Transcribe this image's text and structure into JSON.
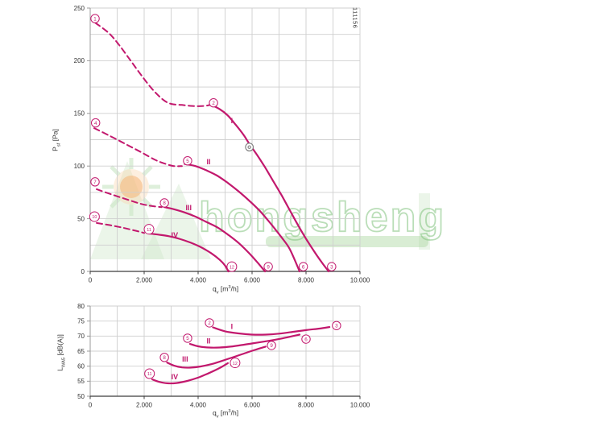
{
  "page": {
    "part_number": "111156",
    "background": "#ffffff"
  },
  "watermark": {
    "text": "hongsheng",
    "text_color": "rgba(130,195,125,0.55)",
    "bar_color": "rgba(170,215,160,0.45)",
    "strip_color": "rgba(205,230,200,0.40)",
    "sun_color": "rgba(246,181,118,0.55)",
    "sun_glow_color": "rgba(249,208,162,0.35)",
    "ray_color": "rgba(205,230,200,0.65)"
  },
  "colors": {
    "curve": "#c2186d",
    "grid": "#cfcfcf",
    "axis_left": "#9b9b9b",
    "axis_bottom": "#3c3c3c",
    "tick_text": "#333333",
    "marker_fill": "#ffffff",
    "operating_marker": "#7a7a7a"
  },
  "chart_data": [
    {
      "name": "static_pressure_vs_airflow",
      "type": "line",
      "xlabel": {
        "base": "q",
        "sub": "v",
        "unit_pre": " [m",
        "sup": "3",
        "unit_post": "/h]"
      },
      "ylabel": {
        "base": "P",
        "sub": "sf",
        "unit_pre": " [Pa]",
        "sup": "",
        "unit_post": ""
      },
      "xlim": [
        0,
        10000
      ],
      "ylim": [
        0,
        250
      ],
      "x_grid_step": 1000,
      "y_grid_step": 25,
      "x_major_ticks": [
        0,
        2000,
        4000,
        6000,
        8000,
        10000
      ],
      "x_tick_labels": [
        "0",
        "2.000",
        "4.000",
        "6.000",
        "8.000",
        "10.000"
      ],
      "y_major_ticks": [
        0,
        50,
        100,
        150,
        200,
        250
      ],
      "y_tick_labels": [
        "0",
        "50",
        "100",
        "150",
        "200",
        "250"
      ],
      "series": [
        {
          "name": "I-dashed",
          "style": "dashed",
          "points": [
            [
              190,
              236
            ],
            [
              700,
              226
            ],
            [
              1100,
              214
            ],
            [
              1500,
              200
            ],
            [
              1900,
              186
            ],
            [
              2300,
              173
            ],
            [
              2700,
              163
            ],
            [
              3000,
              159
            ],
            [
              3400,
              158
            ],
            [
              3800,
              157
            ],
            [
              4200,
              157
            ],
            [
              4450,
              158
            ]
          ]
        },
        {
          "name": "I-solid",
          "style": "solid",
          "points": [
            [
              4500,
              158
            ],
            [
              4800,
              154
            ],
            [
              5100,
              148
            ],
            [
              5400,
              139
            ],
            [
              5700,
              129
            ],
            [
              5900,
              121
            ],
            [
              6200,
              110
            ],
            [
              6500,
              98
            ],
            [
              6800,
              85
            ],
            [
              7100,
              72
            ],
            [
              7400,
              58
            ],
            [
              7700,
              44
            ],
            [
              8000,
              31
            ],
            [
              8300,
              19
            ],
            [
              8600,
              8
            ],
            [
              8840,
              0
            ]
          ]
        },
        {
          "name": "II-dashed",
          "style": "dashed",
          "points": [
            [
              150,
              136
            ],
            [
              700,
              129
            ],
            [
              1300,
              121
            ],
            [
              1900,
              113
            ],
            [
              2400,
              106
            ],
            [
              2800,
              102
            ],
            [
              3100,
              100
            ],
            [
              3400,
              100
            ]
          ]
        },
        {
          "name": "II-solid",
          "style": "solid",
          "points": [
            [
              3500,
              102
            ],
            [
              3900,
              100
            ],
            [
              4300,
              96
            ],
            [
              4700,
              91
            ],
            [
              5100,
              84
            ],
            [
              5500,
              76
            ],
            [
              5900,
              67
            ],
            [
              6300,
              57
            ],
            [
              6700,
              45
            ],
            [
              7100,
              32
            ],
            [
              7400,
              21
            ],
            [
              7760,
              0
            ]
          ]
        },
        {
          "name": "III-dashed",
          "style": "dashed",
          "points": [
            [
              240,
              78
            ],
            [
              800,
              73
            ],
            [
              1400,
              68
            ],
            [
              1900,
              64
            ],
            [
              2300,
              62
            ],
            [
              2650,
              61
            ]
          ]
        },
        {
          "name": "III-solid",
          "style": "solid",
          "points": [
            [
              2750,
              61
            ],
            [
              3100,
              59
            ],
            [
              3500,
              56
            ],
            [
              3900,
              52
            ],
            [
              4300,
              47
            ],
            [
              4700,
              42
            ],
            [
              5100,
              35
            ],
            [
              5500,
              27
            ],
            [
              5900,
              17
            ],
            [
              6250,
              7
            ],
            [
              6480,
              0
            ]
          ]
        },
        {
          "name": "IV-dashed",
          "style": "dashed",
          "points": [
            [
              240,
              46
            ],
            [
              700,
              44
            ],
            [
              1200,
              41.5
            ],
            [
              1700,
              38.5
            ],
            [
              2000,
              36.5
            ]
          ]
        },
        {
          "name": "IV-solid",
          "style": "solid",
          "points": [
            [
              2150,
              36
            ],
            [
              2500,
              35
            ],
            [
              2900,
              33.5
            ],
            [
              3300,
              31
            ],
            [
              3700,
              27.5
            ],
            [
              4100,
              23
            ],
            [
              4500,
              17
            ],
            [
              4800,
              11
            ],
            [
              5000,
              5.5
            ],
            [
              5120,
              0
            ]
          ]
        }
      ],
      "curve_labels": [
        {
          "text": "I",
          "x": 5250,
          "y": 143
        },
        {
          "text": "II",
          "x": 4390,
          "y": 104
        },
        {
          "text": "III",
          "x": 3650,
          "y": 60.5
        },
        {
          "text": "IV",
          "x": 3130,
          "y": 34.5
        }
      ],
      "point_markers": [
        {
          "n": "1",
          "x": 180,
          "y": 240
        },
        {
          "n": "2",
          "x": 4570,
          "y": 160
        },
        {
          "n": "3",
          "x": 8950,
          "y": 4.5
        },
        {
          "n": "4",
          "x": 200,
          "y": 141
        },
        {
          "n": "5",
          "x": 3610,
          "y": 105
        },
        {
          "n": "6",
          "x": 7900,
          "y": 4.5
        },
        {
          "n": "7",
          "x": 180,
          "y": 85
        },
        {
          "n": "8",
          "x": 2750,
          "y": 65
        },
        {
          "n": "9",
          "x": 6600,
          "y": 4.5
        },
        {
          "n": "10",
          "x": 160,
          "y": 52
        },
        {
          "n": "11",
          "x": 2180,
          "y": 40
        },
        {
          "n": "12",
          "x": 5250,
          "y": 4.5
        }
      ],
      "operating_point": {
        "x": 5900,
        "y": 118
      }
    },
    {
      "name": "noise_level_vs_airflow",
      "type": "line",
      "xlabel": {
        "base": "q",
        "sub": "v",
        "unit_pre": " [m",
        "sup": "3",
        "unit_post": "/h]"
      },
      "ylabel": {
        "base": "L",
        "sub": "WA5",
        "unit_pre": " [dB(A)]",
        "sup": "",
        "unit_post": ""
      },
      "xlim": [
        0,
        10000
      ],
      "ylim": [
        50,
        80
      ],
      "x_grid_step": 1000,
      "y_grid_step": 5,
      "x_major_ticks": [
        0,
        2000,
        4000,
        6000,
        8000,
        10000
      ],
      "x_tick_labels": [
        "0",
        "2.000",
        "4.000",
        "6.000",
        "8.000",
        "10.000"
      ],
      "y_major_ticks": [
        50,
        55,
        60,
        65,
        70,
        75,
        80
      ],
      "y_tick_labels": [
        "50",
        "55",
        "60",
        "65",
        "70",
        "75",
        "80"
      ],
      "series": [
        {
          "name": "I-solid",
          "style": "solid",
          "points": [
            [
              4550,
              72.9
            ],
            [
              5000,
              71.6
            ],
            [
              5500,
              70.9
            ],
            [
              6000,
              70.5
            ],
            [
              6500,
              70.5
            ],
            [
              7000,
              70.8
            ],
            [
              7500,
              71.4
            ],
            [
              8000,
              72.0
            ],
            [
              8500,
              72.5
            ],
            [
              8870,
              73.0
            ]
          ]
        },
        {
          "name": "II-solid",
          "style": "solid",
          "points": [
            [
              3700,
              67.4
            ],
            [
              4000,
              66.6
            ],
            [
              4400,
              66.2
            ],
            [
              4800,
              66.2
            ],
            [
              5200,
              66.5
            ],
            [
              5600,
              67.0
            ],
            [
              6100,
              67.7
            ],
            [
              6600,
              68.4
            ],
            [
              7100,
              69.2
            ],
            [
              7760,
              70.5
            ]
          ]
        },
        {
          "name": "III-solid",
          "style": "solid",
          "points": [
            [
              2850,
              61.2
            ],
            [
              3100,
              60.2
            ],
            [
              3400,
              59.6
            ],
            [
              3700,
              59.5
            ],
            [
              4100,
              59.9
            ],
            [
              4500,
              60.7
            ],
            [
              4900,
              61.8
            ],
            [
              5300,
              63.0
            ],
            [
              5700,
              64.2
            ],
            [
              6100,
              65.4
            ],
            [
              6500,
              66.5
            ]
          ]
        },
        {
          "name": "IV-solid",
          "style": "solid",
          "points": [
            [
              2300,
              55.6
            ],
            [
              2550,
              54.8
            ],
            [
              2850,
              54.3
            ],
            [
              3200,
              54.4
            ],
            [
              3600,
              55.1
            ],
            [
              4000,
              56.2
            ],
            [
              4400,
              57.7
            ],
            [
              4800,
              59.4
            ],
            [
              5100,
              61.0
            ]
          ]
        }
      ],
      "curve_labels": [
        {
          "text": "I",
          "x": 5250,
          "y": 73.2
        },
        {
          "text": "II",
          "x": 4390,
          "y": 68.4
        },
        {
          "text": "III",
          "x": 3520,
          "y": 62.3
        },
        {
          "text": "IV",
          "x": 3130,
          "y": 56.4
        }
      ],
      "point_markers": [
        {
          "n": "2",
          "x": 4420,
          "y": 74.4
        },
        {
          "n": "3",
          "x": 9130,
          "y": 73.5
        },
        {
          "n": "5",
          "x": 3610,
          "y": 69.3
        },
        {
          "n": "6",
          "x": 8000,
          "y": 69.0
        },
        {
          "n": "8",
          "x": 2750,
          "y": 62.9
        },
        {
          "n": "9",
          "x": 6720,
          "y": 66.9
        },
        {
          "n": "11",
          "x": 2200,
          "y": 57.5
        },
        {
          "n": "12",
          "x": 5370,
          "y": 61.1
        }
      ]
    }
  ]
}
